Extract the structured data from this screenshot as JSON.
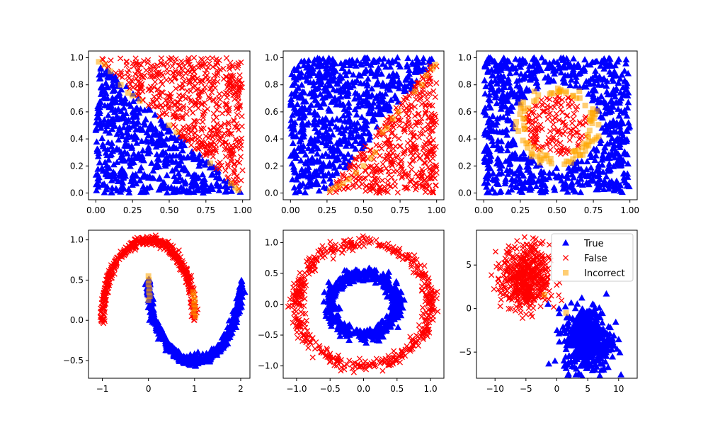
{
  "figure": {
    "background": "#ffffff"
  },
  "colors": {
    "true": "#0000ff",
    "false": "#ff0000",
    "incorrect": "#ffa500",
    "frame": "#000000"
  },
  "legend": {
    "true_label": "True",
    "false_label": "False",
    "incorrect_label": "Incorrect",
    "placement": "upper-right of bottom-right subplot"
  },
  "chart_data": [
    {
      "type": "scatter",
      "dataset": "triangle split by anti-diagonal y = 1 - x",
      "xlim": [
        -0.05,
        1.05
      ],
      "ylim": [
        -0.05,
        1.05
      ],
      "xticks": [
        "0.00",
        "0.25",
        "0.50",
        "0.75",
        "1.00"
      ],
      "yticks": [
        "0.0",
        "0.2",
        "0.4",
        "0.6",
        "0.8",
        "1.0"
      ],
      "xtick_values": [
        0,
        0.25,
        0.5,
        0.75,
        1.0
      ],
      "ytick_values": [
        0,
        0.2,
        0.4,
        0.6,
        0.8,
        1.0
      ],
      "series": [
        {
          "name": "True",
          "marker": "triangle",
          "color": "#0000ff",
          "region": "x + y < 1",
          "x_range": [
            0,
            1
          ],
          "y_range": [
            0,
            1
          ]
        },
        {
          "name": "False",
          "marker": "x",
          "color": "#ff0000",
          "region": "x + y > 1",
          "x_range": [
            0,
            1
          ],
          "y_range": [
            0,
            1
          ]
        },
        {
          "name": "Incorrect",
          "marker": "square",
          "color": "#ffa500",
          "points": [
            [
              0.02,
              0.97
            ],
            [
              0.06,
              0.95
            ],
            [
              0.1,
              0.9
            ],
            [
              0.17,
              0.8
            ],
            [
              0.22,
              0.74
            ],
            [
              0.25,
              0.72
            ],
            [
              0.3,
              0.68
            ],
            [
              0.5,
              0.5
            ],
            [
              0.55,
              0.45
            ],
            [
              0.78,
              0.22
            ],
            [
              0.92,
              0.07
            ],
            [
              0.95,
              0.04
            ],
            [
              0.97,
              0.02
            ]
          ]
        }
      ]
    },
    {
      "type": "scatter",
      "dataset": "square split by line y = 1.333x - 0.333",
      "xlim": [
        -0.05,
        1.05
      ],
      "ylim": [
        -0.05,
        1.05
      ],
      "xticks": [
        "0.00",
        "0.25",
        "0.50",
        "0.75",
        "1.00"
      ],
      "yticks": [
        "0.0",
        "0.2",
        "0.4",
        "0.6",
        "0.8",
        "1.0"
      ],
      "xtick_values": [
        0,
        0.25,
        0.5,
        0.75,
        1.0
      ],
      "ytick_values": [
        0,
        0.2,
        0.4,
        0.6,
        0.8,
        1.0
      ],
      "series": [
        {
          "name": "True",
          "marker": "triangle",
          "color": "#0000ff",
          "region": "above line",
          "x_range": [
            0,
            1
          ],
          "y_range": [
            0,
            1
          ]
        },
        {
          "name": "False",
          "marker": "x",
          "color": "#ff0000",
          "region": "below line",
          "x_range": [
            0.25,
            1
          ],
          "y_range": [
            0,
            1
          ]
        },
        {
          "name": "Incorrect",
          "marker": "square",
          "color": "#ffa500",
          "points": [
            [
              0.27,
              0.02
            ],
            [
              0.3,
              0.04
            ],
            [
              0.33,
              0.05
            ],
            [
              0.36,
              0.07
            ],
            [
              0.4,
              0.1
            ],
            [
              0.45,
              0.15
            ],
            [
              0.5,
              0.2
            ],
            [
              0.55,
              0.26
            ],
            [
              0.58,
              0.3
            ],
            [
              0.63,
              0.45
            ],
            [
              0.66,
              0.48
            ],
            [
              0.7,
              0.55
            ],
            [
              0.74,
              0.6
            ],
            [
              0.85,
              0.75
            ],
            [
              0.9,
              0.8
            ],
            [
              0.93,
              0.87
            ],
            [
              0.97,
              0.92
            ],
            [
              0.99,
              0.95
            ]
          ]
        }
      ]
    },
    {
      "type": "scatter",
      "dataset": "disc of radius 0.3 centred at (0.5, 0.5)",
      "xlim": [
        -0.05,
        1.05
      ],
      "ylim": [
        -0.05,
        1.05
      ],
      "xticks": [
        "0.00",
        "0.25",
        "0.50",
        "0.75",
        "1.00"
      ],
      "yticks": [
        "0.0",
        "0.2",
        "0.4",
        "0.6",
        "0.8",
        "1.0"
      ],
      "xtick_values": [
        0,
        0.25,
        0.5,
        0.75,
        1.0
      ],
      "ytick_values": [
        0,
        0.2,
        0.4,
        0.6,
        0.8,
        1.0
      ],
      "series": [
        {
          "name": "True",
          "marker": "triangle",
          "color": "#0000ff",
          "region": "outside circle r=0.3",
          "x_range": [
            0,
            1
          ],
          "y_range": [
            0,
            1
          ]
        },
        {
          "name": "False",
          "marker": "x",
          "color": "#ff0000",
          "region": "inside circle r=0.22",
          "center": [
            0.5,
            0.5
          ]
        },
        {
          "name": "Incorrect",
          "marker": "square",
          "color": "#ffa500",
          "region": "ring 0.22 < r < 0.3",
          "center": [
            0.5,
            0.5
          ]
        }
      ]
    },
    {
      "type": "scatter",
      "dataset": "two moons",
      "xlim": [
        -1.3,
        2.2
      ],
      "ylim": [
        -0.72,
        1.12
      ],
      "xticks": [
        "−1",
        "0",
        "1",
        "2"
      ],
      "yticks": [
        "−0.5",
        "0.0",
        "0.5",
        "1.0"
      ],
      "xtick_values": [
        -1,
        0,
        1,
        2
      ],
      "ytick_values": [
        -0.5,
        0,
        0.5,
        1.0
      ],
      "series": [
        {
          "name": "True",
          "marker": "triangle",
          "color": "#0000ff",
          "shape": "lower moon x = 1 - cos(t), y = 0.5 - sin(t)"
        },
        {
          "name": "False",
          "marker": "x",
          "color": "#ff0000",
          "shape": "upper moon x = cos(t), y = sin(t)"
        },
        {
          "name": "Incorrect",
          "marker": "square",
          "color": "#ffa500",
          "points": [
            [
              0.0,
              0.55
            ],
            [
              0.01,
              0.5
            ],
            [
              0.0,
              0.45
            ],
            [
              0.02,
              0.4
            ],
            [
              0.01,
              0.35
            ],
            [
              0.03,
              0.3
            ],
            [
              0.0,
              0.25
            ],
            [
              0.97,
              0.35
            ],
            [
              0.98,
              0.3
            ],
            [
              1.0,
              0.25
            ],
            [
              0.99,
              0.2
            ],
            [
              1.01,
              0.15
            ],
            [
              0.98,
              0.1
            ],
            [
              1.02,
              0.05
            ]
          ]
        }
      ]
    },
    {
      "type": "scatter",
      "dataset": "concentric circles",
      "xlim": [
        -1.2,
        1.2
      ],
      "ylim": [
        -1.2,
        1.2
      ],
      "xticks": [
        "−1.0",
        "−0.5",
        "0.0",
        "0.5",
        "1.0"
      ],
      "yticks": [
        "−1.0",
        "−0.5",
        "0.0",
        "0.5",
        "1.0"
      ],
      "xtick_values": [
        -1,
        -0.5,
        0,
        0.5,
        1
      ],
      "ytick_values": [
        -1,
        -0.5,
        0,
        0.5,
        1
      ],
      "series": [
        {
          "name": "True",
          "marker": "triangle",
          "color": "#0000ff",
          "shape": "inner circle r≈0.5"
        },
        {
          "name": "False",
          "marker": "x",
          "color": "#ff0000",
          "shape": "outer circle r≈1.0"
        }
      ]
    },
    {
      "type": "scatter",
      "dataset": "two gaussian blobs",
      "xlim": [
        -13,
        13
      ],
      "ylim": [
        -8,
        9
      ],
      "xticks": [
        "−10",
        "−5",
        "0",
        "5",
        "10"
      ],
      "yticks": [
        "−5",
        "0",
        "5"
      ],
      "xtick_values": [
        -10,
        -5,
        0,
        5,
        10
      ],
      "ytick_values": [
        -5,
        0,
        5
      ],
      "series": [
        {
          "name": "True",
          "marker": "triangle",
          "color": "#0000ff",
          "center": [
            5,
            -3.5
          ],
          "spread": 2
        },
        {
          "name": "False",
          "marker": "x",
          "color": "#ff0000",
          "center": [
            -5,
            3.5
          ],
          "spread": 2
        },
        {
          "name": "Incorrect",
          "marker": "square",
          "color": "#ffa500",
          "points": [
            [
              -2,
              1.6
            ],
            [
              1.5,
              -0.5
            ]
          ]
        }
      ]
    }
  ]
}
